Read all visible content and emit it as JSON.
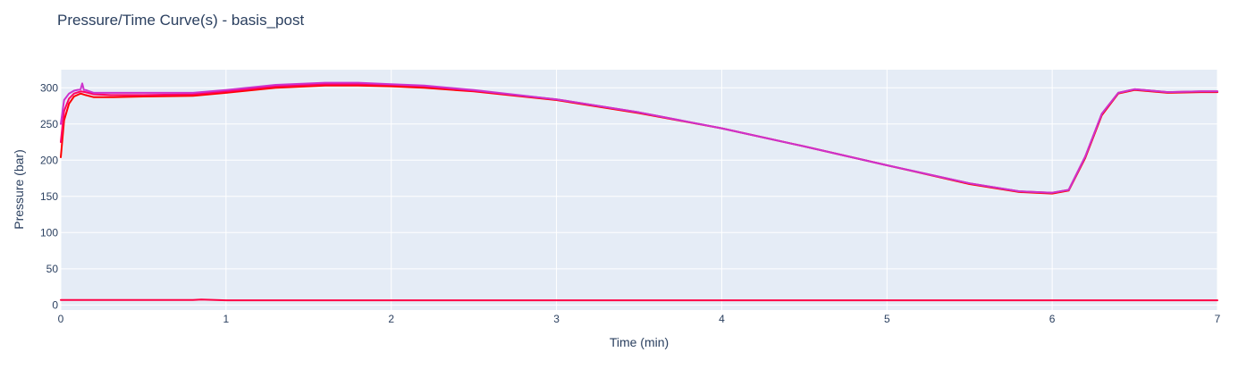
{
  "chart_data": {
    "type": "line",
    "title": "Pressure/Time Curve(s) - basis_post",
    "xlabel": "Time (min)",
    "ylabel": "Pressure (bar)",
    "xlim": [
      0,
      7
    ],
    "ylim": [
      -7,
      325
    ],
    "grid": true,
    "legend": "none",
    "plot_bgcolor": "#e5ecf6",
    "x_ticks": [
      0,
      1,
      2,
      3,
      4,
      5,
      6,
      7
    ],
    "x_tick_labels": [
      "0",
      "1",
      "2",
      "3",
      "4",
      "5",
      "6",
      "7"
    ],
    "y_ticks": [
      0,
      50,
      100,
      150,
      200,
      250,
      300
    ],
    "y_tick_labels": [
      "0",
      "50",
      "100",
      "150",
      "200",
      "250",
      "300"
    ],
    "series": [
      {
        "color": "#ff0000",
        "x": [
          0,
          0.02,
          0.05,
          0.08,
          0.12,
          0.15,
          0.2,
          0.3,
          0.5,
          0.8,
          1.0,
          1.3,
          1.6,
          1.8,
          2.0,
          2.2,
          2.5,
          3.0,
          3.5,
          4.0,
          4.5,
          5.0,
          5.5,
          5.8,
          6.0,
          6.1,
          6.2,
          6.3,
          6.4,
          6.5,
          6.7,
          6.9,
          7.0
        ],
        "y": [
          204,
          255,
          278,
          288,
          292,
          290,
          287,
          287,
          288,
          289,
          293,
          300,
          303,
          303,
          302,
          300,
          295,
          283,
          265,
          244,
          219,
          193,
          167,
          156,
          154,
          158,
          203,
          262,
          292,
          297,
          293,
          294,
          294
        ]
      },
      {
        "color": "#ff0066",
        "x": [
          0,
          0.02,
          0.05,
          0.08,
          0.12,
          0.15,
          0.2,
          0.3,
          0.5,
          0.8,
          1.0,
          1.3,
          1.6,
          1.8,
          2.0,
          2.2,
          2.5,
          3.0,
          3.5,
          4.0,
          4.5,
          5.0,
          5.5,
          5.8,
          6.0,
          6.1,
          6.2,
          6.3,
          6.4,
          6.5,
          6.7,
          6.9,
          7.0
        ],
        "y": [
          225,
          268,
          285,
          292,
          295,
          294,
          291,
          290,
          290,
          291,
          295,
          302,
          305,
          305,
          304,
          302,
          296,
          284,
          266,
          244,
          219,
          193,
          168,
          157,
          155,
          159,
          205,
          264,
          293,
          298,
          294,
          295,
          295
        ]
      },
      {
        "color": "#cc33cc",
        "x": [
          0,
          0.02,
          0.05,
          0.08,
          0.12,
          0.13,
          0.14,
          0.15,
          0.2,
          0.3,
          0.5,
          0.8,
          1.0,
          1.3,
          1.6,
          1.8,
          2.0,
          2.2,
          2.5,
          3.0,
          3.5,
          4.0,
          4.5,
          5.0,
          5.5,
          5.8,
          6.0,
          6.1,
          6.2,
          6.3,
          6.4,
          6.5,
          6.7,
          6.9,
          7.0
        ],
        "y": [
          250,
          283,
          292,
          296,
          298,
          306,
          297,
          297,
          293,
          293,
          293,
          293,
          297,
          304,
          307,
          307,
          305,
          303,
          297,
          284,
          266,
          244,
          219,
          193,
          168,
          157,
          155,
          159,
          205,
          264,
          293,
          298,
          294,
          295,
          295
        ]
      },
      {
        "color": "#ff0044",
        "x": [
          0,
          0.5,
          0.8,
          0.85,
          1.0,
          3.0,
          5.0,
          7.0
        ],
        "y": [
          7,
          7,
          7,
          7.5,
          6.5,
          6.5,
          6.5,
          6.5
        ]
      }
    ]
  }
}
